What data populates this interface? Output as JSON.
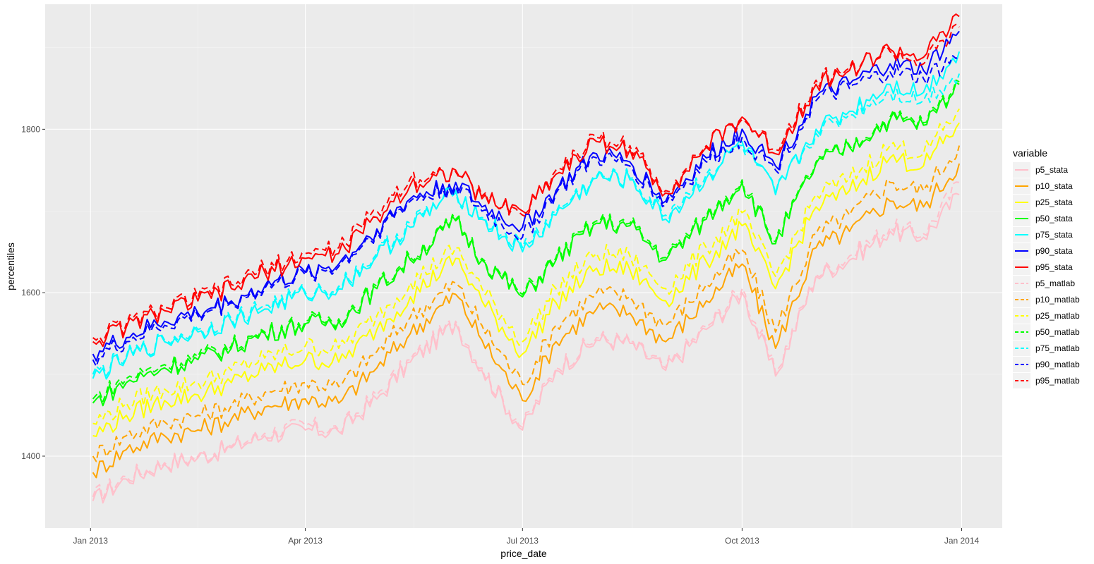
{
  "chart_data": {
    "type": "line",
    "xlabel": "price_date",
    "ylabel": "percentiles",
    "x_ticks": [
      "Jan 2013",
      "Apr 2013",
      "Jul 2013",
      "Oct 2013",
      "Jan 2014"
    ],
    "y_ticks": [
      1400,
      1600,
      1800
    ],
    "xlim": [
      "2012-12-13",
      "2014-01-18"
    ],
    "ylim": [
      1312,
      1953
    ],
    "grid": true,
    "legend": {
      "title": "variable",
      "placement": "right",
      "entries": [
        "p5_stata",
        "p10_stata",
        "p25_stata",
        "p50_stata",
        "p75_stata",
        "p90_stata",
        "p95_stata",
        "p5_matlab",
        "p10_matlab",
        "p25_matlab",
        "p50_matlab",
        "p75_matlab",
        "p90_matlab",
        "p95_matlab"
      ]
    },
    "x": [
      "2013-01-02",
      "2013-01-16",
      "2013-02-01",
      "2013-02-15",
      "2013-03-01",
      "2013-03-15",
      "2013-04-01",
      "2013-04-15",
      "2013-05-01",
      "2013-05-15",
      "2013-06-03",
      "2013-06-14",
      "2013-07-01",
      "2013-07-15",
      "2013-08-01",
      "2013-08-15",
      "2013-08-30",
      "2013-09-16",
      "2013-10-01",
      "2013-10-15",
      "2013-11-01",
      "2013-11-15",
      "2013-12-02",
      "2013-12-16",
      "2013-12-31"
    ],
    "series": [
      {
        "name": "p5_stata",
        "color": "#ffc0cb",
        "dash": "solid",
        "values": [
          1345,
          1372,
          1390,
          1398,
          1410,
          1425,
          1432,
          1430,
          1470,
          1515,
          1562,
          1505,
          1432,
          1505,
          1542,
          1538,
          1505,
          1555,
          1600,
          1498,
          1620,
          1640,
          1675,
          1668,
          1720
        ]
      },
      {
        "name": "p10_stata",
        "color": "#ffa500",
        "dash": "solid",
        "values": [
          1380,
          1408,
          1425,
          1432,
          1445,
          1460,
          1470,
          1465,
          1508,
          1550,
          1598,
          1542,
          1468,
          1540,
          1580,
          1575,
          1540,
          1590,
          1635,
          1532,
          1655,
          1675,
          1712,
          1705,
          1758
        ]
      },
      {
        "name": "p25_stata",
        "color": "#ffff00",
        "dash": "solid",
        "values": [
          1425,
          1450,
          1468,
          1475,
          1490,
          1505,
          1518,
          1515,
          1555,
          1595,
          1642,
          1590,
          1525,
          1588,
          1630,
          1628,
          1590,
          1638,
          1682,
          1605,
          1705,
          1725,
          1765,
          1755,
          1808
        ]
      },
      {
        "name": "p50_stata",
        "color": "#00ff00",
        "dash": "solid",
        "values": [
          1465,
          1490,
          1508,
          1518,
          1532,
          1550,
          1562,
          1565,
          1605,
          1640,
          1688,
          1640,
          1595,
          1640,
          1685,
          1682,
          1640,
          1690,
          1735,
          1660,
          1758,
          1778,
          1812,
          1805,
          1855
        ]
      },
      {
        "name": "p75_stata",
        "color": "#00ffff",
        "dash": "solid",
        "values": [
          1495,
          1520,
          1540,
          1552,
          1565,
          1580,
          1598,
          1605,
          1645,
          1680,
          1725,
          1690,
          1650,
          1695,
          1740,
          1738,
          1690,
          1740,
          1785,
          1720,
          1800,
          1822,
          1855,
          1845,
          1895
        ]
      },
      {
        "name": "p90_stata",
        "color": "#0000ff",
        "dash": "solid",
        "values": [
          1525,
          1545,
          1565,
          1575,
          1590,
          1608,
          1625,
          1635,
          1678,
          1715,
          1735,
          1705,
          1680,
          1725,
          1770,
          1760,
          1712,
          1765,
          1800,
          1755,
          1840,
          1855,
          1880,
          1872,
          1920
        ]
      },
      {
        "name": "p95_stata",
        "color": "#ff0000",
        "dash": "solid",
        "values": [
          1540,
          1558,
          1578,
          1590,
          1605,
          1625,
          1642,
          1648,
          1692,
          1732,
          1750,
          1715,
          1700,
          1745,
          1785,
          1775,
          1722,
          1778,
          1815,
          1770,
          1855,
          1872,
          1898,
          1888,
          1938
        ]
      },
      {
        "name": "p5_matlab",
        "color": "#ffc0cb",
        "dash": "dashed",
        "values": [
          1350,
          1375,
          1392,
          1400,
          1412,
          1428,
          1438,
          1432,
          1475,
          1518,
          1565,
          1508,
          1435,
          1508,
          1545,
          1540,
          1508,
          1558,
          1605,
          1502,
          1622,
          1645,
          1680,
          1672,
          1735
        ]
      },
      {
        "name": "p10_matlab",
        "color": "#ffa500",
        "dash": "dashed",
        "values": [
          1400,
          1425,
          1442,
          1450,
          1462,
          1478,
          1490,
          1485,
          1528,
          1570,
          1612,
          1560,
          1488,
          1560,
          1600,
          1595,
          1560,
          1610,
          1652,
          1552,
          1672,
          1695,
          1735,
          1725,
          1780
        ]
      },
      {
        "name": "p25_matlab",
        "color": "#ffff00",
        "dash": "dashed",
        "values": [
          1440,
          1465,
          1482,
          1490,
          1505,
          1520,
          1535,
          1532,
          1572,
          1612,
          1655,
          1605,
          1540,
          1605,
          1648,
          1645,
          1605,
          1655,
          1698,
          1620,
          1720,
          1740,
          1780,
          1770,
          1825
        ]
      },
      {
        "name": "p50_matlab",
        "color": "#00ff00",
        "dash": "dashed",
        "values": [
          1470,
          1495,
          1512,
          1522,
          1535,
          1552,
          1565,
          1568,
          1608,
          1643,
          1690,
          1642,
          1598,
          1643,
          1688,
          1685,
          1643,
          1693,
          1738,
          1663,
          1760,
          1780,
          1815,
          1808,
          1858
        ]
      },
      {
        "name": "p75_matlab",
        "color": "#00ffff",
        "dash": "dashed",
        "values": [
          1500,
          1522,
          1542,
          1555,
          1568,
          1585,
          1600,
          1608,
          1648,
          1685,
          1722,
          1692,
          1655,
          1698,
          1742,
          1740,
          1695,
          1745,
          1780,
          1722,
          1795,
          1818,
          1845,
          1835,
          1868
        ]
      },
      {
        "name": "p90_matlab",
        "color": "#0000ff",
        "dash": "dashed",
        "values": [
          1518,
          1540,
          1560,
          1572,
          1588,
          1605,
          1622,
          1632,
          1675,
          1712,
          1730,
          1700,
          1668,
          1722,
          1765,
          1755,
          1708,
          1760,
          1790,
          1750,
          1835,
          1850,
          1870,
          1862,
          1890
        ]
      },
      {
        "name": "p95_matlab",
        "color": "#ff0000",
        "dash": "dashed",
        "values": [
          1545,
          1562,
          1582,
          1595,
          1610,
          1630,
          1648,
          1655,
          1700,
          1740,
          1748,
          1718,
          1695,
          1750,
          1790,
          1780,
          1725,
          1780,
          1812,
          1775,
          1860,
          1875,
          1895,
          1880,
          1925
        ]
      }
    ]
  }
}
